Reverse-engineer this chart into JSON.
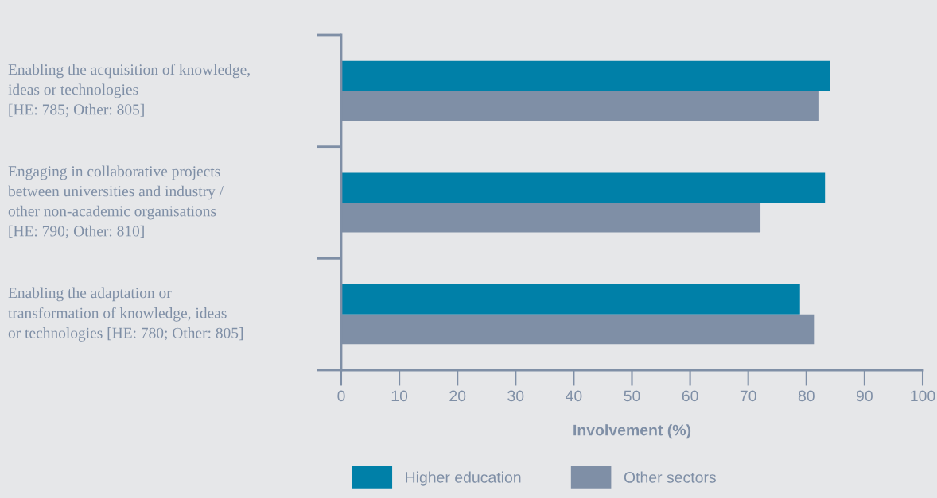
{
  "chart_data": {
    "type": "bar",
    "orientation": "horizontal",
    "categories": [
      "Enabling the acquisition of knowledge,\nideas or technologies\n[HE: 785; Other: 805]",
      "Engaging in collaborative projects\nbetween universities and industry /\nother non-academic organisations\n[HE: 790; Other: 810]",
      "Enabling the adaptation or\ntransformation of knowledge, ideas\nor technologies [HE: 780; Other: 805]"
    ],
    "series": [
      {
        "name": "Higher education",
        "color": "#0080a8",
        "values": [
          84.0,
          83.2,
          78.9
        ]
      },
      {
        "name": "Other sectors",
        "color": "#7f8fa6",
        "values": [
          82.2,
          72.1,
          81.3
        ]
      }
    ],
    "xlabel": "Involvement (%)",
    "xlim": [
      0,
      100
    ],
    "xticks": [
      0,
      10,
      20,
      30,
      40,
      50,
      60,
      70,
      80,
      90,
      100
    ],
    "grid": false,
    "legend": "bottom"
  }
}
